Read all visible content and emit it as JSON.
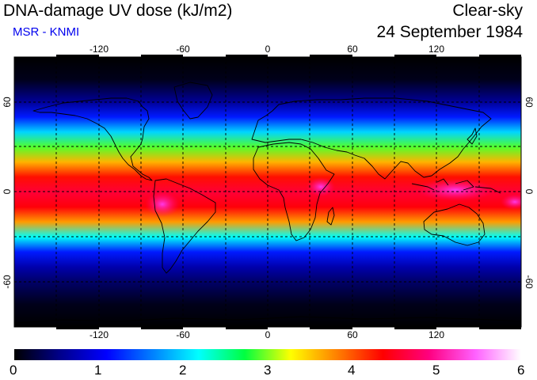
{
  "header": {
    "title": "DNA-damage UV dose (kJ/m2)",
    "source": "MSR - KNMI",
    "condition": "Clear-sky",
    "date": "24 September 1984"
  },
  "map": {
    "projection": "equirectangular",
    "lon_range": [
      -180,
      180
    ],
    "lat_range": [
      -90,
      90
    ],
    "lon_ticks": [
      "-120",
      "-60",
      "0",
      "60",
      "120"
    ],
    "lat_ticks": [
      "60",
      "0",
      "-60"
    ],
    "grid": "dashed every 30 degrees",
    "coastlines": true
  },
  "colorbar": {
    "ticks": [
      "0",
      "1",
      "2",
      "3",
      "4",
      "5",
      "6"
    ],
    "colors": [
      "#000000",
      "#00008c",
      "#0000ff",
      "#0080ff",
      "#00ffff",
      "#00ff40",
      "#ffff00",
      "#ff8000",
      "#ff0000",
      "#ff0080",
      "#ff60ff",
      "#ffffff"
    ]
  },
  "chart_data": {
    "type": "heatmap",
    "title": "DNA-damage UV dose (kJ/m2)",
    "xlabel": "",
    "ylabel": "",
    "xlim": [
      -180,
      180
    ],
    "ylim": [
      -90,
      90
    ],
    "color_range": [
      0,
      6
    ],
    "zonal_profile": {
      "latitude": [
        90,
        75,
        60,
        50,
        40,
        30,
        20,
        10,
        0,
        -10,
        -20,
        -30,
        -40,
        -50,
        -60,
        -75,
        -90
      ],
      "dose": [
        0.0,
        0.1,
        0.6,
        1.2,
        2.0,
        2.9,
        3.6,
        4.3,
        4.6,
        4.4,
        3.7,
        2.2,
        1.2,
        0.7,
        0.4,
        0.1,
        0.0
      ]
    }
  }
}
